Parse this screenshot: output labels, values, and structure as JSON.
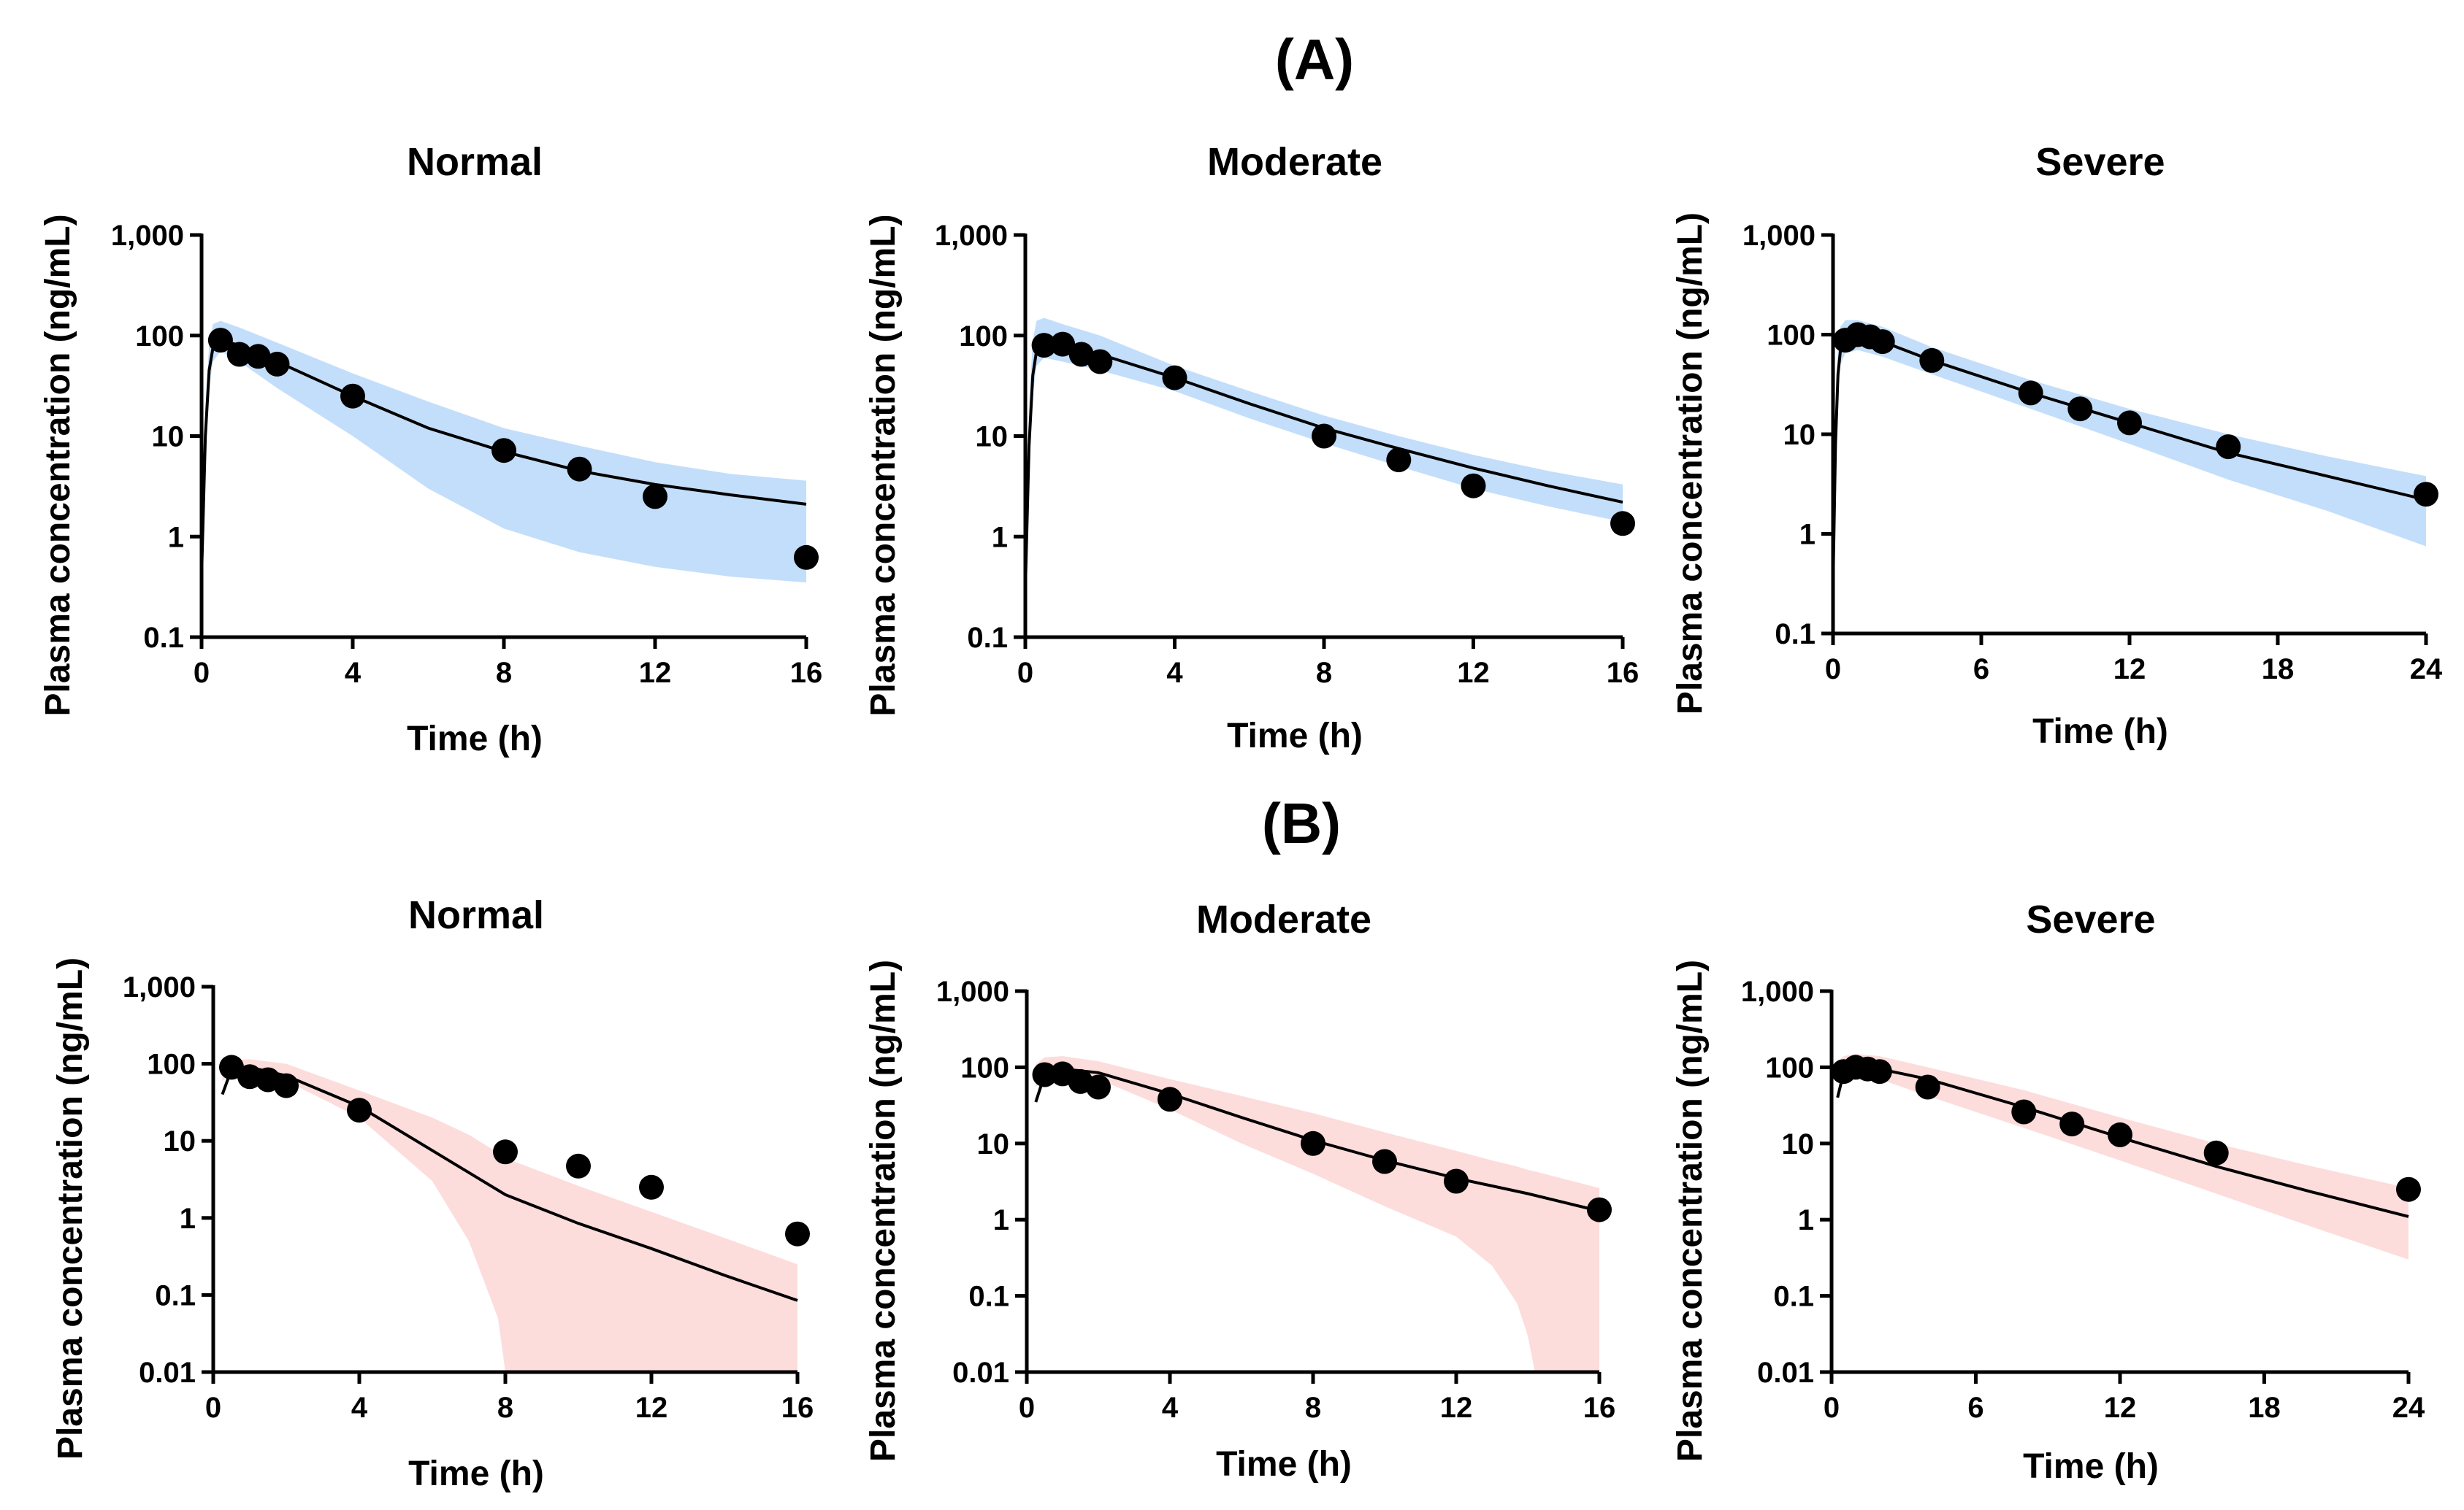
{
  "row_labels": [
    "(A)",
    "(B)"
  ],
  "colors": {
    "row_a_band": "#c3defa",
    "row_b_band": "#fddcdc",
    "line": "#000000",
    "points": "#000000"
  },
  "chart_data": [
    {
      "type": "line",
      "row": "(A)",
      "title": "Normal",
      "xlabel": "Time (h)",
      "ylabel": "Plasma concentration (ng/mL)",
      "yscale": "log",
      "xlim": [
        0,
        16
      ],
      "ylim": [
        0.1,
        1000
      ],
      "xticks": [
        0,
        4,
        8,
        12,
        16
      ],
      "xtick_labels": [
        "0",
        "4",
        "8",
        "12",
        "16"
      ],
      "yticks": [
        0.1,
        1,
        10,
        100,
        1000
      ],
      "ytick_labels": [
        "0.1",
        "1",
        "10",
        "100",
        "1,000"
      ],
      "observed": {
        "x": [
          0.5,
          1,
          1.5,
          2,
          4,
          8,
          10,
          12,
          16
        ],
        "y": [
          90,
          65,
          62,
          52,
          25,
          7.2,
          4.7,
          2.5,
          0.62
        ]
      },
      "predicted": {
        "x": [
          0,
          0.1,
          0.2,
          0.3,
          0.5,
          1,
          2,
          4,
          6,
          8,
          10,
          12,
          14,
          16
        ],
        "y": [
          0.4,
          10,
          45,
          75,
          90,
          80,
          55,
          25,
          12,
          7,
          4.5,
          3.3,
          2.6,
          2.1
        ]
      },
      "band": {
        "x": [
          0,
          0.1,
          0.2,
          0.3,
          0.5,
          1,
          2,
          4,
          6,
          8,
          10,
          12,
          14,
          16
        ],
        "lower": [
          0.1,
          5,
          30,
          55,
          70,
          55,
          30,
          10,
          3,
          1.2,
          0.7,
          0.5,
          0.4,
          0.35
        ],
        "upper": [
          0.6,
          20,
          80,
          130,
          140,
          120,
          85,
          42,
          22,
          12,
          8,
          5.5,
          4.2,
          3.6
        ]
      }
    },
    {
      "type": "line",
      "row": "(A)",
      "title": "Moderate",
      "xlabel": "Time (h)",
      "ylabel": "Plasma concentration (ng/mL)",
      "yscale": "log",
      "xlim": [
        0,
        16
      ],
      "ylim": [
        0.1,
        1000
      ],
      "xticks": [
        0,
        4,
        8,
        12,
        16
      ],
      "xtick_labels": [
        "0",
        "4",
        "8",
        "12",
        "16"
      ],
      "yticks": [
        0.1,
        1,
        10,
        100,
        1000
      ],
      "ytick_labels": [
        "0.1",
        "1",
        "10",
        "100",
        "1,000"
      ],
      "observed": {
        "x": [
          0.5,
          1,
          1.5,
          2,
          4,
          8,
          10,
          12,
          16
        ],
        "y": [
          80,
          82,
          65,
          55,
          38,
          10,
          5.8,
          3.2,
          1.35
        ]
      },
      "predicted": {
        "x": [
          0,
          0.1,
          0.2,
          0.3,
          0.5,
          1,
          2,
          4,
          6,
          8,
          10,
          12,
          14,
          16
        ],
        "y": [
          0.3,
          8,
          40,
          70,
          85,
          80,
          65,
          38,
          21,
          12,
          7.5,
          4.8,
          3.2,
          2.2
        ]
      },
      "band": {
        "x": [
          0,
          0.1,
          0.2,
          0.3,
          0.5,
          1,
          2,
          4,
          6,
          8,
          10,
          12,
          14,
          16
        ],
        "lower": [
          0.1,
          4,
          25,
          50,
          60,
          55,
          45,
          28,
          15,
          8.5,
          5,
          3,
          2,
          1.4
        ],
        "upper": [
          0.6,
          20,
          90,
          140,
          150,
          130,
          100,
          50,
          28,
          16,
          10,
          6.5,
          4.5,
          3.3
        ]
      }
    },
    {
      "type": "line",
      "row": "(A)",
      "title": "Severe",
      "xlabel": "Time (h)",
      "ylabel": "Plasma concentration (ng/mL)",
      "yscale": "log",
      "xlim": [
        0,
        24
      ],
      "ylim": [
        0.1,
        1000
      ],
      "xticks": [
        0,
        6,
        12,
        18,
        24
      ],
      "xtick_labels": [
        "0",
        "6",
        "12",
        "18",
        "24"
      ],
      "yticks": [
        0.1,
        1,
        10,
        100,
        1000
      ],
      "ytick_labels": [
        "0.1",
        "1",
        "10",
        "100",
        "1,000"
      ],
      "observed": {
        "x": [
          0.5,
          1,
          1.5,
          2,
          4,
          8,
          10,
          12,
          16,
          24
        ],
        "y": [
          88,
          100,
          95,
          85,
          55,
          26,
          18,
          13,
          7.5,
          2.5
        ]
      },
      "predicted": {
        "x": [
          0,
          0.1,
          0.2,
          0.3,
          0.5,
          1,
          2,
          4,
          8,
          12,
          16,
          20,
          24
        ],
        "y": [
          0.3,
          8,
          40,
          70,
          90,
          95,
          85,
          55,
          26,
          13,
          6.5,
          3.8,
          2.2
        ]
      },
      "band": {
        "x": [
          0,
          0.1,
          0.2,
          0.3,
          0.5,
          1,
          2,
          4,
          8,
          12,
          16,
          20,
          24
        ],
        "lower": [
          0.1,
          4,
          25,
          50,
          65,
          70,
          60,
          40,
          18,
          8,
          3.5,
          1.7,
          0.75
        ],
        "upper": [
          0.6,
          18,
          80,
          120,
          140,
          140,
          120,
          75,
          35,
          18,
          10,
          6,
          3.8
        ]
      }
    },
    {
      "type": "line",
      "row": "(B)",
      "title": "Normal",
      "xlabel": "Time (h)",
      "ylabel": "Plasma concentration (ng/mL)",
      "yscale": "log",
      "xlim": [
        0,
        16
      ],
      "ylim": [
        0.01,
        1000
      ],
      "xticks": [
        0,
        4,
        8,
        12,
        16
      ],
      "xtick_labels": [
        "0",
        "4",
        "8",
        "12",
        "16"
      ],
      "yticks": [
        0.01,
        0.1,
        1,
        10,
        100,
        1000
      ],
      "ytick_labels": [
        "0.01",
        "0.1",
        "1",
        "10",
        "100",
        "1,000"
      ],
      "observed": {
        "x": [
          0.5,
          1,
          1.5,
          2,
          4,
          8,
          10,
          12,
          16
        ],
        "y": [
          90,
          68,
          62,
          52,
          25,
          7.2,
          4.7,
          2.5,
          0.62
        ]
      },
      "predicted": {
        "x": [
          0.25,
          0.5,
          1,
          2,
          4,
          6,
          8,
          10,
          12,
          14,
          16
        ],
        "y": [
          40,
          85,
          90,
          70,
          28,
          7.5,
          2,
          0.85,
          0.4,
          0.18,
          0.085
        ]
      },
      "band": {
        "x": [
          0.25,
          0.5,
          1,
          2,
          4,
          6,
          7,
          7.8,
          8,
          8.2,
          10,
          12,
          14,
          16
        ],
        "lower": [
          60,
          70,
          75,
          60,
          20,
          3,
          0.5,
          0.05,
          0.01,
          0.01,
          0.01,
          0.01,
          0.01,
          0.01
        ],
        "upper": [
          100,
          110,
          115,
          100,
          45,
          20,
          12,
          7,
          6,
          5.5,
          2.6,
          1.2,
          0.55,
          0.25
        ]
      }
    },
    {
      "type": "line",
      "row": "(B)",
      "title": "Moderate",
      "xlabel": "Time (h)",
      "ylabel": "Plasma concentration (ng/mL)",
      "yscale": "log",
      "xlim": [
        0,
        16
      ],
      "ylim": [
        0.01,
        1000
      ],
      "xticks": [
        0,
        4,
        8,
        12,
        16
      ],
      "xtick_labels": [
        "0",
        "4",
        "8",
        "12",
        "16"
      ],
      "yticks": [
        0.01,
        0.1,
        1,
        10,
        100,
        1000
      ],
      "ytick_labels": [
        "0.01",
        "0.1",
        "1",
        "10",
        "100",
        "1,000"
      ],
      "observed": {
        "x": [
          0.5,
          1,
          1.5,
          2,
          4,
          8,
          10,
          12,
          16
        ],
        "y": [
          80,
          82,
          65,
          55,
          38,
          10,
          5.8,
          3.2,
          1.35
        ]
      },
      "predicted": {
        "x": [
          0.25,
          0.5,
          1,
          2,
          4,
          6,
          8,
          10,
          12,
          14,
          16
        ],
        "y": [
          35,
          80,
          95,
          85,
          45,
          22,
          11,
          6,
          3.5,
          2.2,
          1.3
        ]
      },
      "band": {
        "x": [
          0.25,
          0.5,
          1,
          2,
          4,
          6,
          8,
          10,
          12,
          13,
          13.7,
          14,
          14.2,
          16
        ],
        "lower": [
          55,
          75,
          80,
          70,
          28,
          10,
          4,
          1.5,
          0.6,
          0.25,
          0.08,
          0.03,
          0.01,
          0.01
        ],
        "upper": [
          110,
          135,
          140,
          120,
          70,
          42,
          25,
          14,
          8,
          6,
          5,
          4.5,
          4.3,
          2.6
        ]
      }
    },
    {
      "type": "line",
      "row": "(B)",
      "title": "Severe",
      "xlabel": "Time (h)",
      "ylabel": "Plasma concentration (ng/mL)",
      "yscale": "log",
      "xlim": [
        0,
        24
      ],
      "ylim": [
        0.01,
        1000
      ],
      "xticks": [
        0,
        6,
        12,
        18,
        24
      ],
      "xtick_labels": [
        "0",
        "6",
        "12",
        "18",
        "24"
      ],
      "yticks": [
        0.01,
        0.1,
        1,
        10,
        100,
        1000
      ],
      "ytick_labels": [
        "0.01",
        "0.1",
        "1",
        "10",
        "100",
        "1,000"
      ],
      "observed": {
        "x": [
          0.5,
          1,
          1.5,
          2,
          4,
          8,
          10,
          12,
          16,
          24
        ],
        "y": [
          88,
          100,
          95,
          88,
          55,
          26,
          18,
          13,
          7.5,
          2.5
        ]
      },
      "predicted": {
        "x": [
          0.25,
          0.5,
          1,
          2,
          4,
          8,
          12,
          16,
          20,
          24
        ],
        "y": [
          40,
          85,
          100,
          95,
          70,
          30,
          12,
          5,
          2.3,
          1.1
        ]
      },
      "band": {
        "x": [
          0.25,
          0.5,
          1,
          2,
          4,
          8,
          12,
          16,
          20,
          24
        ],
        "lower": [
          70,
          80,
          85,
          70,
          42,
          16,
          6,
          2.2,
          0.8,
          0.3
        ],
        "upper": [
          120,
          140,
          150,
          140,
          100,
          50,
          22,
          10,
          5,
          2.6
        ]
      }
    }
  ]
}
